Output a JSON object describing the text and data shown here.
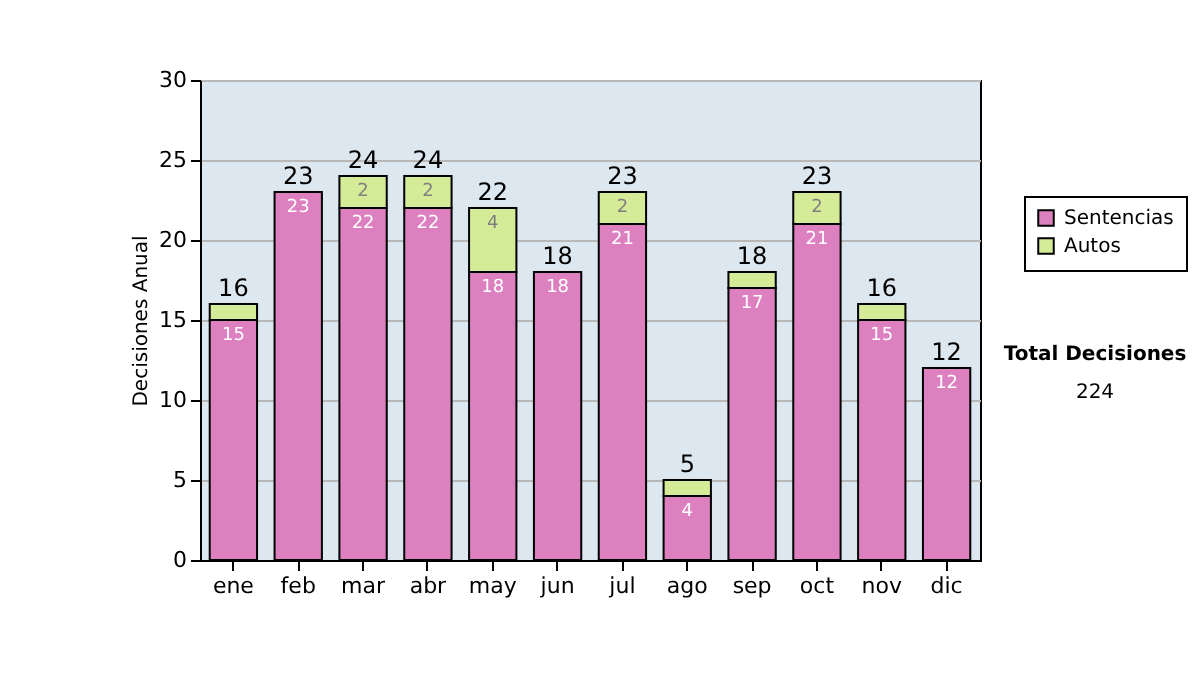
{
  "chart_data": {
    "type": "bar",
    "stacked": true,
    "ylabel": "Decisiones Anual",
    "categories": [
      "ene",
      "feb",
      "mar",
      "abr",
      "may",
      "jun",
      "jul",
      "ago",
      "sep",
      "oct",
      "nov",
      "dic"
    ],
    "series": [
      {
        "name": "Sentencias",
        "color": "#dd80c0",
        "values": [
          15,
          23,
          22,
          22,
          18,
          18,
          21,
          4,
          17,
          21,
          15,
          12
        ],
        "value_labels": [
          "15",
          "23",
          "22",
          "22",
          "18",
          "18",
          "21",
          "4",
          "17",
          "21",
          "15",
          "12"
        ]
      },
      {
        "name": "Autos",
        "color": "#d4ec98",
        "values": [
          1,
          0,
          2,
          2,
          4,
          0,
          2,
          1,
          1,
          2,
          1,
          0
        ],
        "value_labels": [
          null,
          null,
          "2",
          "2",
          "4",
          null,
          "2",
          null,
          null,
          "2",
          null,
          null
        ]
      }
    ],
    "totals": [
      "16",
      "23",
      "24",
      "24",
      "22",
      "18",
      "23",
      "5",
      "18",
      "23",
      "16",
      "12"
    ],
    "ylim": [
      0,
      30
    ],
    "yticks": [
      0,
      5,
      10,
      15,
      20,
      25,
      30
    ],
    "grid": "y",
    "legend": "right",
    "annotations": [
      "Total Decisiones",
      "224"
    ]
  }
}
